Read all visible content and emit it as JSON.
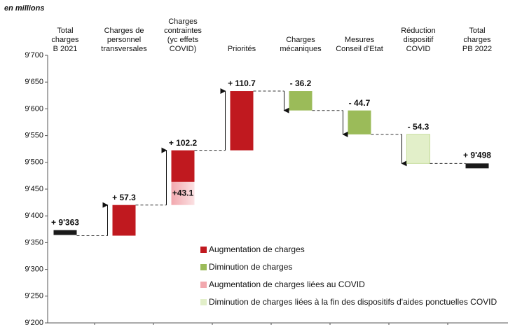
{
  "chart_data": {
    "type": "waterfall",
    "y_unit": "en millions",
    "categories": [
      [
        "Total",
        "charges",
        "B 2021"
      ],
      [
        "Charges de",
        "personnel",
        "transversales"
      ],
      [
        "Charges",
        "contraintes",
        "(yc effets",
        "COVID)"
      ],
      [
        "Priorités"
      ],
      [
        "Charges",
        "mécaniques"
      ],
      [
        "Mesures",
        "Conseil d'Etat"
      ],
      [
        "Réduction",
        "dispositif",
        "COVID"
      ],
      [
        "Total",
        "charges",
        "PB 2022"
      ]
    ],
    "values": [
      9363,
      57.3,
      102.2,
      110.7,
      -36.2,
      -44.7,
      -54.3,
      9498
    ],
    "value_labels": [
      "+ 9'363",
      "+ 57.3",
      "+ 102.2",
      "+ 110.7",
      "- 36.2",
      "- 44.7",
      "- 54.3",
      "+ 9'498"
    ],
    "kind": [
      "total",
      0,
      0,
      0,
      1,
      1,
      3,
      "total"
    ],
    "total_color": "#1a1a1a",
    "covid_increase": {
      "category": 2,
      "value": 43.1,
      "label": "+43.1"
    },
    "legend": [
      {
        "name": "Augmentation de charges",
        "color": "#c0191f"
      },
      {
        "name": "Diminution de charges",
        "color": "#9bbb59"
      },
      {
        "name": "Augmentation de charges liées au COVID",
        "color": "#f2a8ae"
      },
      {
        "name": "Diminution de charges liées à la fin des dispositifs d'aides ponctuelles COVID",
        "color": "#e2efc9"
      }
    ],
    "ylim": [
      9200,
      9700
    ],
    "yticks": [
      {
        "value": 9200,
        "label": "9'200"
      },
      {
        "value": 9250,
        "label": "9'250"
      },
      {
        "value": 9300,
        "label": "9'300"
      },
      {
        "value": 9350,
        "label": "9'350"
      },
      {
        "value": 9400,
        "label": "9'400"
      },
      {
        "value": 9450,
        "label": "9'450"
      },
      {
        "value": 9500,
        "label": "9'500"
      },
      {
        "value": 9550,
        "label": "9'550"
      },
      {
        "value": 9600,
        "label": "9'600"
      },
      {
        "value": 9650,
        "label": "9'650"
      },
      {
        "value": 9700,
        "label": "9'700"
      }
    ]
  }
}
